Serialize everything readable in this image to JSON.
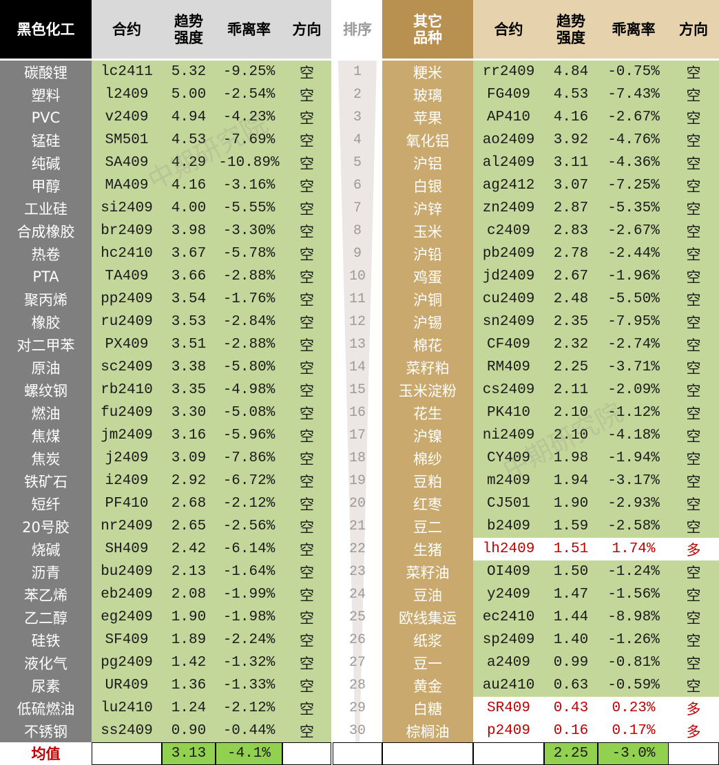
{
  "colors": {
    "left_name_bg": "#7f7f7f",
    "left_header_bg": "#000000",
    "right_name_bg": "#c9a96e",
    "right_header_bg": "#b89150",
    "data_green": "#c4d79b",
    "header_gray": "#d9d9d9",
    "right_header_tan": "#e6d3ad",
    "avg_green": "#92d050",
    "bullish_red": "#c00000"
  },
  "headers": {
    "left_group": "黑色化工",
    "contract": "合约",
    "trend_strength": "趋势\n强度",
    "deviation": "乖离率",
    "direction": "方向",
    "rank": "排序",
    "right_group": "其它\n品种"
  },
  "left_rows": [
    {
      "name": "碳酸锂",
      "contract": "lc2411",
      "strength": "5.32",
      "deviation": "-9.25%",
      "direction": "空"
    },
    {
      "name": "塑料",
      "contract": "l2409",
      "strength": "5.00",
      "deviation": "-2.54%",
      "direction": "空"
    },
    {
      "name": "PVC",
      "contract": "v2409",
      "strength": "4.94",
      "deviation": "-4.23%",
      "direction": "空"
    },
    {
      "name": "锰硅",
      "contract": "SM501",
      "strength": "4.53",
      "deviation": "-7.69%",
      "direction": "空"
    },
    {
      "name": "纯碱",
      "contract": "SA409",
      "strength": "4.29",
      "deviation": "-10.89%",
      "direction": "空"
    },
    {
      "name": "甲醇",
      "contract": "MA409",
      "strength": "4.16",
      "deviation": "-3.16%",
      "direction": "空"
    },
    {
      "name": "工业硅",
      "contract": "si2409",
      "strength": "4.00",
      "deviation": "-5.55%",
      "direction": "空"
    },
    {
      "name": "合成橡胶",
      "contract": "br2409",
      "strength": "3.98",
      "deviation": "-3.30%",
      "direction": "空"
    },
    {
      "name": "热卷",
      "contract": "hc2410",
      "strength": "3.67",
      "deviation": "-5.78%",
      "direction": "空"
    },
    {
      "name": "PTA",
      "contract": "TA409",
      "strength": "3.66",
      "deviation": "-2.88%",
      "direction": "空"
    },
    {
      "name": "聚丙烯",
      "contract": "pp2409",
      "strength": "3.54",
      "deviation": "-1.76%",
      "direction": "空"
    },
    {
      "name": "橡胶",
      "contract": "ru2409",
      "strength": "3.53",
      "deviation": "-2.84%",
      "direction": "空"
    },
    {
      "name": "对二甲苯",
      "contract": "PX409",
      "strength": "3.51",
      "deviation": "-2.88%",
      "direction": "空"
    },
    {
      "name": "原油",
      "contract": "sc2409",
      "strength": "3.38",
      "deviation": "-5.80%",
      "direction": "空"
    },
    {
      "name": "螺纹钢",
      "contract": "rb2410",
      "strength": "3.35",
      "deviation": "-4.98%",
      "direction": "空"
    },
    {
      "name": "燃油",
      "contract": "fu2409",
      "strength": "3.30",
      "deviation": "-5.08%",
      "direction": "空"
    },
    {
      "name": "焦煤",
      "contract": "jm2409",
      "strength": "3.16",
      "deviation": "-5.96%",
      "direction": "空"
    },
    {
      "name": "焦炭",
      "contract": "j2409",
      "strength": "3.09",
      "deviation": "-7.86%",
      "direction": "空"
    },
    {
      "name": "铁矿石",
      "contract": "i2409",
      "strength": "2.92",
      "deviation": "-6.72%",
      "direction": "空"
    },
    {
      "name": "短纤",
      "contract": "PF410",
      "strength": "2.68",
      "deviation": "-2.12%",
      "direction": "空"
    },
    {
      "name": "20号胶",
      "contract": "nr2409",
      "strength": "2.65",
      "deviation": "-2.56%",
      "direction": "空"
    },
    {
      "name": "烧碱",
      "contract": "SH409",
      "strength": "2.42",
      "deviation": "-6.14%",
      "direction": "空"
    },
    {
      "name": "沥青",
      "contract": "bu2409",
      "strength": "2.13",
      "deviation": "-1.64%",
      "direction": "空"
    },
    {
      "name": "苯乙烯",
      "contract": "eb2409",
      "strength": "2.08",
      "deviation": "-1.99%",
      "direction": "空"
    },
    {
      "name": "乙二醇",
      "contract": "eg2409",
      "strength": "1.90",
      "deviation": "-1.98%",
      "direction": "空"
    },
    {
      "name": "硅铁",
      "contract": "SF409",
      "strength": "1.89",
      "deviation": "-2.24%",
      "direction": "空"
    },
    {
      "name": "液化气",
      "contract": "pg2409",
      "strength": "1.42",
      "deviation": "-1.32%",
      "direction": "空"
    },
    {
      "name": "尿素",
      "contract": "UR409",
      "strength": "1.36",
      "deviation": "-1.33%",
      "direction": "空"
    },
    {
      "name": "低硫燃油",
      "contract": "lu2410",
      "strength": "1.24",
      "deviation": "-2.12%",
      "direction": "空"
    },
    {
      "name": "不锈钢",
      "contract": "ss2409",
      "strength": "0.90",
      "deviation": "-0.44%",
      "direction": "空"
    }
  ],
  "ranks": [
    "1",
    "2",
    "3",
    "4",
    "5",
    "6",
    "7",
    "8",
    "9",
    "10",
    "11",
    "12",
    "13",
    "14",
    "15",
    "16",
    "17",
    "18",
    "19",
    "20",
    "21",
    "22",
    "23",
    "24",
    "25",
    "26",
    "27",
    "28",
    "29",
    "30"
  ],
  "right_rows": [
    {
      "name": "粳米",
      "contract": "rr2409",
      "strength": "4.84",
      "deviation": "-0.75%",
      "direction": "空",
      "bullish": false
    },
    {
      "name": "玻璃",
      "contract": "FG409",
      "strength": "4.53",
      "deviation": "-7.43%",
      "direction": "空",
      "bullish": false
    },
    {
      "name": "苹果",
      "contract": "AP410",
      "strength": "4.16",
      "deviation": "-2.67%",
      "direction": "空",
      "bullish": false
    },
    {
      "name": "氧化铝",
      "contract": "ao2409",
      "strength": "3.92",
      "deviation": "-4.76%",
      "direction": "空",
      "bullish": false
    },
    {
      "name": "沪铝",
      "contract": "al2409",
      "strength": "3.11",
      "deviation": "-4.36%",
      "direction": "空",
      "bullish": false
    },
    {
      "name": "白银",
      "contract": "ag2412",
      "strength": "3.07",
      "deviation": "-7.25%",
      "direction": "空",
      "bullish": false
    },
    {
      "name": "沪锌",
      "contract": "zn2409",
      "strength": "2.87",
      "deviation": "-5.35%",
      "direction": "空",
      "bullish": false
    },
    {
      "name": "玉米",
      "contract": "c2409",
      "strength": "2.83",
      "deviation": "-2.67%",
      "direction": "空",
      "bullish": false
    },
    {
      "name": "沪铅",
      "contract": "pb2409",
      "strength": "2.78",
      "deviation": "-2.44%",
      "direction": "空",
      "bullish": false
    },
    {
      "name": "鸡蛋",
      "contract": "jd2409",
      "strength": "2.67",
      "deviation": "-1.96%",
      "direction": "空",
      "bullish": false
    },
    {
      "name": "沪铜",
      "contract": "cu2409",
      "strength": "2.48",
      "deviation": "-5.50%",
      "direction": "空",
      "bullish": false
    },
    {
      "name": "沪锡",
      "contract": "sn2409",
      "strength": "2.35",
      "deviation": "-7.95%",
      "direction": "空",
      "bullish": false
    },
    {
      "name": "棉花",
      "contract": "CF409",
      "strength": "2.32",
      "deviation": "-2.74%",
      "direction": "空",
      "bullish": false
    },
    {
      "name": "菜籽粕",
      "contract": "RM409",
      "strength": "2.25",
      "deviation": "-3.71%",
      "direction": "空",
      "bullish": false
    },
    {
      "name": "玉米淀粉",
      "contract": "cs2409",
      "strength": "2.11",
      "deviation": "-2.09%",
      "direction": "空",
      "bullish": false
    },
    {
      "name": "花生",
      "contract": "PK410",
      "strength": "2.10",
      "deviation": "-1.12%",
      "direction": "空",
      "bullish": false
    },
    {
      "name": "沪镍",
      "contract": "ni2409",
      "strength": "2.10",
      "deviation": "-4.18%",
      "direction": "空",
      "bullish": false
    },
    {
      "name": "棉纱",
      "contract": "CY409",
      "strength": "1.98",
      "deviation": "-1.94%",
      "direction": "空",
      "bullish": false
    },
    {
      "name": "豆粕",
      "contract": "m2409",
      "strength": "1.94",
      "deviation": "-3.17%",
      "direction": "空",
      "bullish": false
    },
    {
      "name": "红枣",
      "contract": "CJ501",
      "strength": "1.90",
      "deviation": "-2.93%",
      "direction": "空",
      "bullish": false
    },
    {
      "name": "豆二",
      "contract": "b2409",
      "strength": "1.59",
      "deviation": "-2.58%",
      "direction": "空",
      "bullish": false
    },
    {
      "name": "生猪",
      "contract": "lh2409",
      "strength": "1.51",
      "deviation": "1.74%",
      "direction": "多",
      "bullish": true
    },
    {
      "name": "菜籽油",
      "contract": "OI409",
      "strength": "1.50",
      "deviation": "-1.24%",
      "direction": "空",
      "bullish": false
    },
    {
      "name": "豆油",
      "contract": "y2409",
      "strength": "1.47",
      "deviation": "-1.56%",
      "direction": "空",
      "bullish": false
    },
    {
      "name": "欧线集运",
      "contract": "ec2410",
      "strength": "1.44",
      "deviation": "-8.98%",
      "direction": "空",
      "bullish": false
    },
    {
      "name": "纸浆",
      "contract": "sp2409",
      "strength": "1.40",
      "deviation": "-1.26%",
      "direction": "空",
      "bullish": false
    },
    {
      "name": "豆一",
      "contract": "a2409",
      "strength": "0.99",
      "deviation": "-0.81%",
      "direction": "空",
      "bullish": false
    },
    {
      "name": "黄金",
      "contract": "au2410",
      "strength": "0.63",
      "deviation": "-0.59%",
      "direction": "空",
      "bullish": false
    },
    {
      "name": "白糖",
      "contract": "SR409",
      "strength": "0.43",
      "deviation": "0.23%",
      "direction": "多",
      "bullish": true
    },
    {
      "name": "棕榈油",
      "contract": "p2409",
      "strength": "0.16",
      "deviation": "0.17%",
      "direction": "多",
      "bullish": true
    }
  ],
  "footer": {
    "label": "均值",
    "left_strength_avg": "3.13",
    "left_deviation_avg": "-4.1%",
    "right_strength_avg": "2.25",
    "right_deviation_avg": "-3.0%"
  },
  "watermark": {
    "text": "中期研究院"
  }
}
